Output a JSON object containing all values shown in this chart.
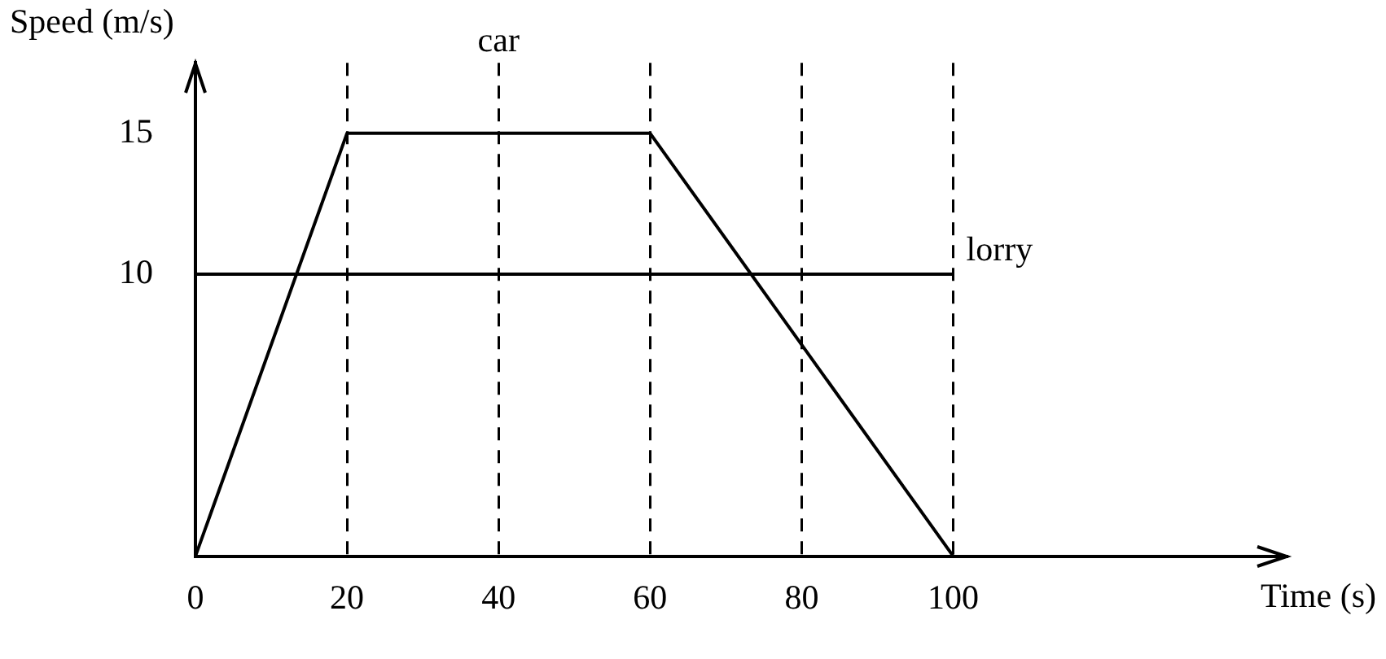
{
  "chart_data": {
    "type": "line",
    "xlabel": "Time (s)",
    "ylabel": "Speed (m/s)",
    "series": [
      {
        "name": "car",
        "color": "#000000",
        "x": [
          0,
          20,
          60,
          100
        ],
        "values": [
          0,
          15,
          15,
          0
        ]
      },
      {
        "name": "lorry",
        "color": "#000000",
        "x": [
          0,
          100
        ],
        "values": [
          10,
          10
        ]
      }
    ],
    "xlim": [
      0,
      144
    ],
    "xticks": [
      0,
      20,
      40,
      60,
      80,
      100
    ],
    "ylim": [
      0,
      17.5
    ],
    "yticks": [
      10,
      15
    ],
    "grid": "x",
    "legend": false,
    "marker": "none",
    "line_style": "solid"
  }
}
